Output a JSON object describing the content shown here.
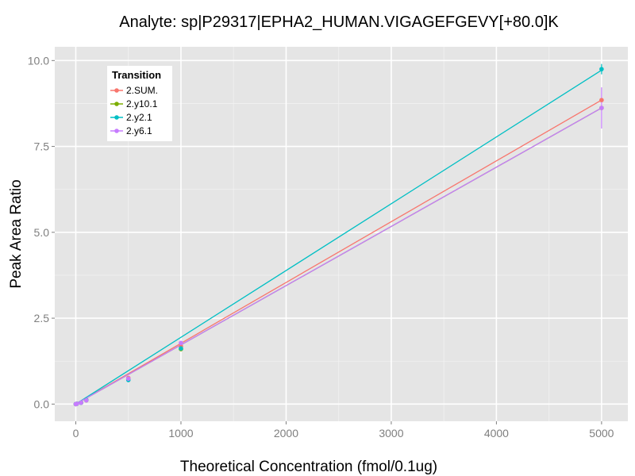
{
  "chart_data": {
    "type": "line",
    "title": "Analyte: sp|P29317|EPHA2_HUMAN.VIGAGEFGEVY[+80.0]K",
    "xlabel": "Theoretical Concentration (fmol/0.1ug)",
    "ylabel": "Peak Area Ratio",
    "xlim": [
      -200,
      5250
    ],
    "ylim": [
      -0.5,
      10.4
    ],
    "x_ticks": [
      0,
      1000,
      2000,
      3000,
      4000,
      5000
    ],
    "y_ticks": [
      0.0,
      2.5,
      5.0,
      7.5,
      10.0
    ],
    "y_tick_labels": [
      "0.0",
      "2.5",
      "5.0",
      "7.5",
      "10.0"
    ],
    "grid": true,
    "legend": {
      "title": "Transition",
      "placement": "top-left"
    },
    "x": [
      0,
      10,
      50,
      100,
      500,
      1000,
      5000
    ],
    "series": [
      {
        "name": "2.SUM.",
        "color": "#F8766D",
        "values": [
          0.0,
          0.01,
          0.04,
          0.12,
          0.76,
          1.68,
          8.85
        ],
        "error": [
          0,
          0,
          0,
          0.01,
          0.03,
          0.05,
          0.0
        ]
      },
      {
        "name": "2.y10.1",
        "color": "#7CAE00",
        "values": [
          0.0,
          0.01,
          0.04,
          0.11,
          0.72,
          1.6,
          8.62
        ],
        "error": [
          0,
          0,
          0,
          0.01,
          0.03,
          0.05,
          0.0
        ]
      },
      {
        "name": "2.y2.1",
        "color": "#00BFC4",
        "values": [
          0.0,
          0.01,
          0.04,
          0.12,
          0.7,
          1.62,
          9.75
        ],
        "error": [
          0,
          0,
          0,
          0.01,
          0.04,
          0.06,
          0.15
        ]
      },
      {
        "name": "2.y6.1",
        "color": "#C77CFF",
        "values": [
          0.0,
          0.01,
          0.04,
          0.11,
          0.74,
          1.78,
          8.62
        ],
        "error": [
          0,
          0,
          0,
          0.01,
          0.03,
          0.05,
          0.6
        ]
      }
    ],
    "fit_lines": [
      {
        "series": "2.SUM.",
        "from": [
          0,
          0.0
        ],
        "to": [
          5000,
          8.85
        ]
      },
      {
        "series": "2.y10.1",
        "from": [
          0,
          0.0
        ],
        "to": [
          5000,
          8.62
        ]
      },
      {
        "series": "2.y2.1",
        "from": [
          0,
          0.0
        ],
        "to": [
          5000,
          9.72
        ]
      },
      {
        "series": "2.y6.1",
        "from": [
          0,
          0.0
        ],
        "to": [
          5000,
          8.62
        ]
      }
    ]
  }
}
